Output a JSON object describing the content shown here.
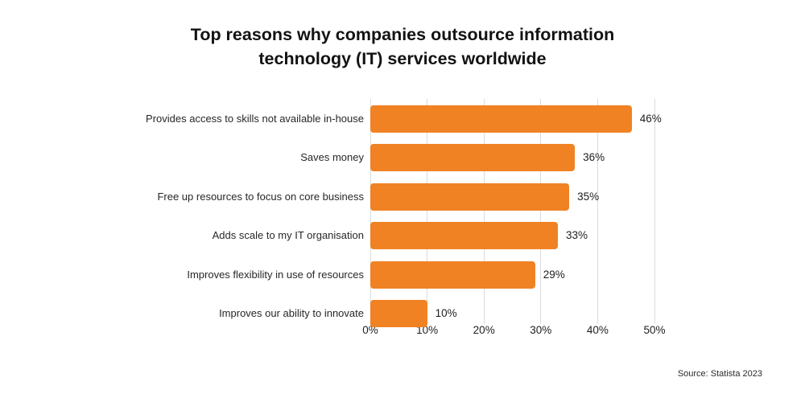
{
  "header": {
    "title": "Top reasons why companies outsource information technology (IT) services worldwide"
  },
  "footer": {
    "source": "Source: Statista 2023"
  },
  "chart_data": {
    "type": "bar",
    "orientation": "horizontal",
    "title": "Top reasons why companies outsource information technology (IT) services worldwide",
    "categories": [
      "Provides access to skills not available in-house",
      "Saves money",
      "Free up resources to focus on core business",
      "Adds scale to my IT organisation",
      "Improves flexibility in use of resources",
      "Improves our ability to innovate"
    ],
    "values": [
      46,
      36,
      35,
      33,
      29,
      10
    ],
    "value_labels": [
      "46%",
      "36%",
      "35%",
      "33%",
      "29%",
      "10%"
    ],
    "x_ticks": [
      "0%",
      "10%",
      "20%",
      "30%",
      "40%",
      "50%"
    ],
    "xlim": [
      0,
      50
    ],
    "xlabel": "",
    "ylabel": "",
    "grid": true,
    "legend": false,
    "bar_color": "#F08223",
    "grid_color": "#DBDBDB",
    "source": "Source: Statista 2023"
  }
}
